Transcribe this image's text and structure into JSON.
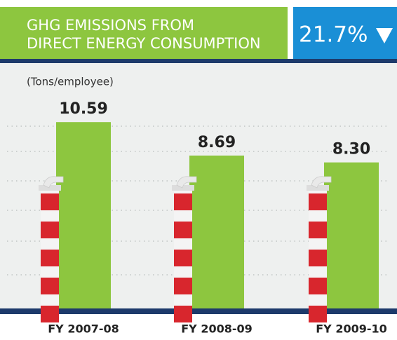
{
  "chart_data": {
    "type": "bar",
    "title": [
      "GHG EMISSIONS FROM",
      "DIRECT ENERGY CONSUMPTION"
    ],
    "badge": "21.7%",
    "unit_label": "(Tons/employee)",
    "categories": [
      "FY 2007-08",
      "FY 2008-09",
      "FY 2009-10"
    ],
    "values": [
      10.59,
      8.69,
      8.3
    ],
    "value_labels": [
      "10.59",
      "8.69",
      "8.30"
    ],
    "color": "#8dc63f",
    "ylim": [
      0,
      14
    ]
  }
}
